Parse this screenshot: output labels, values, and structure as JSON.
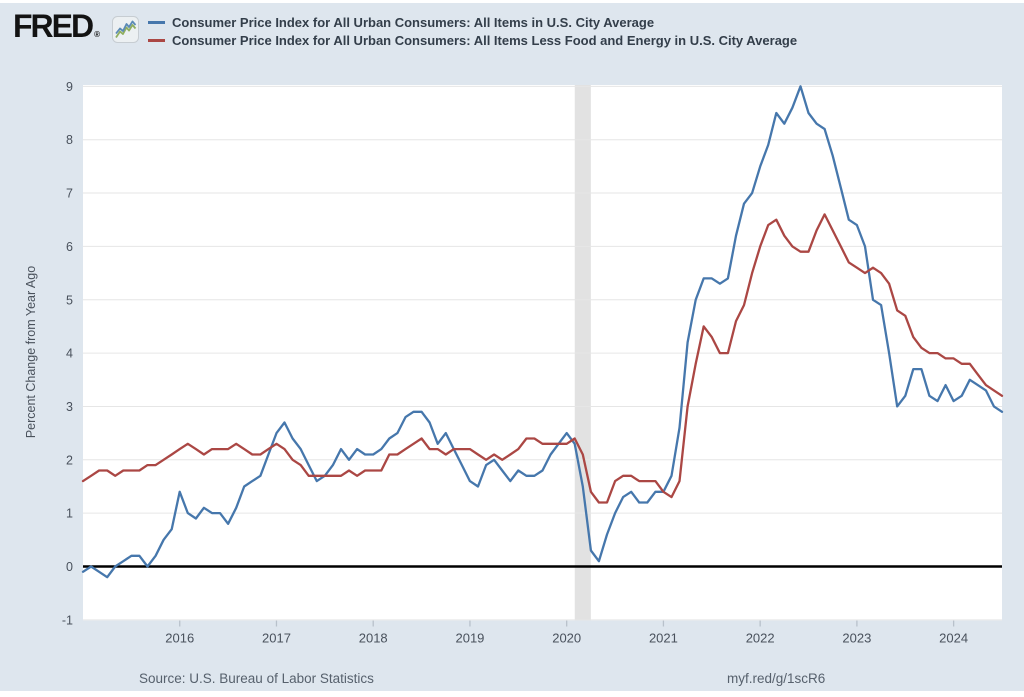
{
  "header": {
    "logo_text": "FRED",
    "registered_mark": "®"
  },
  "footer": {
    "source": "Source: U.S. Bureau of Labor Statistics",
    "short_url": "myf.red/g/1scR6"
  },
  "chart_data": {
    "type": "line",
    "frequency": "monthly",
    "x_start": "2015-01",
    "x_end": "2024-07",
    "title": "",
    "xlabel": "",
    "ylabel": "Percent Change from Year Ago",
    "ylim": [
      -1,
      9
    ],
    "yticks": [
      9,
      8,
      7,
      6,
      5,
      4,
      3,
      2,
      1,
      0,
      -1
    ],
    "xticks": [
      2016,
      2017,
      2018,
      2019,
      2020,
      2021,
      2022,
      2023,
      2024
    ],
    "grid": "horizontal",
    "legend_position": "top",
    "page_background": "#dee6ee",
    "plot_background": "#ffffff",
    "gridline_color": "#e6e6e6",
    "zero_line_color": "#000000",
    "tick_label_color": "#49515c",
    "recession_band": {
      "start": "2020-02",
      "end": "2020-04",
      "color": "#e2e2e2"
    },
    "series": [
      {
        "id": "cpi-all-items",
        "name": "Consumer Price Index for All Urban Consumers: All Items in U.S. City Average",
        "color": "#4677ac",
        "values": [
          -0.1,
          0.0,
          -0.1,
          -0.2,
          0.0,
          0.1,
          0.2,
          0.2,
          0.0,
          0.2,
          0.5,
          0.7,
          1.4,
          1.0,
          0.9,
          1.1,
          1.0,
          1.0,
          0.8,
          1.1,
          1.5,
          1.6,
          1.7,
          2.1,
          2.5,
          2.7,
          2.4,
          2.2,
          1.9,
          1.6,
          1.7,
          1.9,
          2.2,
          2.0,
          2.2,
          2.1,
          2.1,
          2.2,
          2.4,
          2.5,
          2.8,
          2.9,
          2.9,
          2.7,
          2.3,
          2.5,
          2.2,
          1.9,
          1.6,
          1.5,
          1.9,
          2.0,
          1.8,
          1.6,
          1.8,
          1.7,
          1.7,
          1.8,
          2.1,
          2.3,
          2.5,
          2.3,
          1.5,
          0.3,
          0.1,
          0.6,
          1.0,
          1.3,
          1.4,
          1.2,
          1.2,
          1.4,
          1.4,
          1.7,
          2.6,
          4.2,
          5.0,
          5.4,
          5.4,
          5.3,
          5.4,
          6.2,
          6.8,
          7.0,
          7.5,
          7.9,
          8.5,
          8.3,
          8.6,
          9.0,
          8.5,
          8.3,
          8.2,
          7.7,
          7.1,
          6.5,
          6.4,
          6.0,
          5.0,
          4.9,
          4.0,
          3.0,
          3.2,
          3.7,
          3.7,
          3.2,
          3.1,
          3.4,
          3.1,
          3.2,
          3.5,
          3.4,
          3.3,
          3.0,
          2.9
        ]
      },
      {
        "id": "cpi-less-food-energy",
        "name": "Consumer Price Index for All Urban Consumers: All Items Less Food and Energy in U.S. City Average",
        "color": "#ab4744",
        "values": [
          1.6,
          1.7,
          1.8,
          1.8,
          1.7,
          1.8,
          1.8,
          1.8,
          1.9,
          1.9,
          2.0,
          2.1,
          2.2,
          2.3,
          2.2,
          2.1,
          2.2,
          2.2,
          2.2,
          2.3,
          2.2,
          2.1,
          2.1,
          2.2,
          2.3,
          2.2,
          2.0,
          1.9,
          1.7,
          1.7,
          1.7,
          1.7,
          1.7,
          1.8,
          1.7,
          1.8,
          1.8,
          1.8,
          2.1,
          2.1,
          2.2,
          2.3,
          2.4,
          2.2,
          2.2,
          2.1,
          2.2,
          2.2,
          2.2,
          2.1,
          2.0,
          2.1,
          2.0,
          2.1,
          2.2,
          2.4,
          2.4,
          2.3,
          2.3,
          2.3,
          2.3,
          2.4,
          2.1,
          1.4,
          1.2,
          1.2,
          1.6,
          1.7,
          1.7,
          1.6,
          1.6,
          1.6,
          1.4,
          1.3,
          1.6,
          3.0,
          3.8,
          4.5,
          4.3,
          4.0,
          4.0,
          4.6,
          4.9,
          5.5,
          6.0,
          6.4,
          6.5,
          6.2,
          6.0,
          5.9,
          5.9,
          6.3,
          6.6,
          6.3,
          6.0,
          5.7,
          5.6,
          5.5,
          5.6,
          5.5,
          5.3,
          4.8,
          4.7,
          4.3,
          4.1,
          4.0,
          4.0,
          3.9,
          3.9,
          3.8,
          3.8,
          3.6,
          3.4,
          3.3,
          3.2
        ]
      }
    ]
  }
}
